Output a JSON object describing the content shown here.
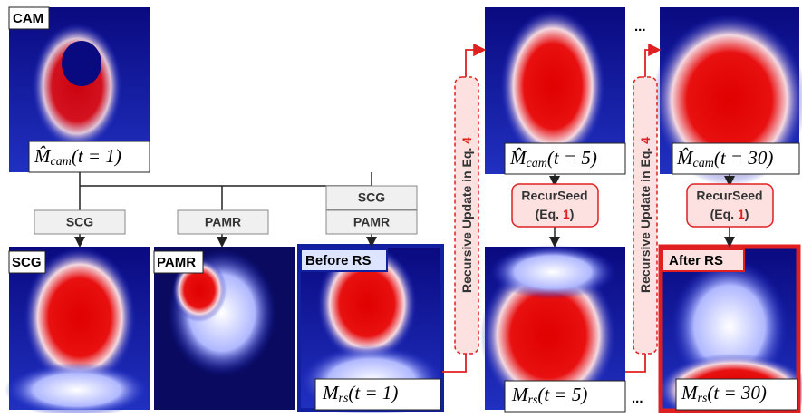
{
  "panels": {
    "cam_initial": {
      "tag": "CAM",
      "label": {
        "symbol": "M̂",
        "sub": "cam",
        "arg": "(t = 1)"
      }
    },
    "cam_t5": {
      "label": {
        "symbol": "M̂",
        "sub": "cam",
        "arg": "(t = 5)"
      }
    },
    "cam_t30": {
      "label": {
        "symbol": "M̂",
        "sub": "cam",
        "arg": "(t = 30)"
      }
    },
    "scg": {
      "tag": "SCG"
    },
    "pamr": {
      "tag": "PAMR"
    },
    "before_rs": {
      "tag": "Before RS",
      "label": {
        "symbol": "M",
        "sub": "rs",
        "arg": "(t = 1)"
      }
    },
    "rs_t5": {
      "label": {
        "symbol": "M",
        "sub": "rs",
        "arg": "(t = 5)"
      }
    },
    "after_rs": {
      "tag": "After RS",
      "label": {
        "symbol": "M",
        "sub": "rs",
        "arg": "(t = 30)"
      }
    }
  },
  "ops": {
    "scg": "SCG",
    "pamr": "PAMR",
    "combo": [
      "SCG",
      "PAMR"
    ]
  },
  "recurseed": {
    "name": "RecurSeed",
    "eq_prefix": "(Eq. ",
    "eq": "1",
    "eq_suffix": ")"
  },
  "update": {
    "text": "Recursive Update in Eq. ",
    "eq": "4"
  },
  "ellipsis": "..."
}
